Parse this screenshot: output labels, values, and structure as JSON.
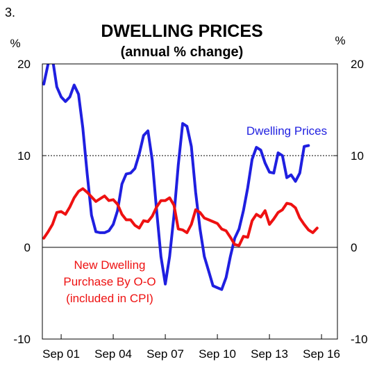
{
  "figure_number": "3.",
  "chart_data": {
    "type": "line",
    "title": "DWELLING PRICES",
    "subtitle": "(annual % change)",
    "ylabel_left": "%",
    "ylabel_right": "%",
    "ylim": [
      -10,
      20
    ],
    "yticks": [
      "20",
      "10",
      "0",
      "-10"
    ],
    "ytick_values": [
      20,
      10,
      0,
      -10
    ],
    "x_start": "2000-08",
    "x_end": "2017-08",
    "xtick_labels": [
      "Sep 01",
      "Sep 04",
      "Sep 07",
      "Sep 10",
      "Sep 13",
      "Sep 16"
    ],
    "xtick_dates": [
      "2001-09",
      "2004-09",
      "2007-09",
      "2010-09",
      "2013-09",
      "2016-09"
    ],
    "grid": "dotted line at 10 only",
    "zero_line": true,
    "series": [
      {
        "name": "Dwelling Prices",
        "color": "#1f1fe0",
        "points": [
          [
            "2000-09",
            17.8
          ],
          [
            "2000-12",
            20.0
          ],
          [
            "2001-03",
            20.6
          ],
          [
            "2001-06",
            17.5
          ],
          [
            "2001-09",
            16.4
          ],
          [
            "2001-12",
            15.9
          ],
          [
            "2002-03",
            16.4
          ],
          [
            "2002-06",
            17.7
          ],
          [
            "2002-09",
            16.7
          ],
          [
            "2002-12",
            13.0
          ],
          [
            "2003-03",
            8.0
          ],
          [
            "2003-06",
            3.5
          ],
          [
            "2003-09",
            1.7
          ],
          [
            "2003-12",
            1.6
          ],
          [
            "2004-03",
            1.6
          ],
          [
            "2004-06",
            1.8
          ],
          [
            "2004-09",
            2.5
          ],
          [
            "2004-12",
            4.0
          ],
          [
            "2005-03",
            6.9
          ],
          [
            "2005-06",
            8.0
          ],
          [
            "2005-09",
            8.1
          ],
          [
            "2005-12",
            8.6
          ],
          [
            "2006-03",
            10.2
          ],
          [
            "2006-06",
            12.2
          ],
          [
            "2006-09",
            12.7
          ],
          [
            "2006-12",
            9.5
          ],
          [
            "2007-03",
            4.0
          ],
          [
            "2007-06",
            -1.0
          ],
          [
            "2007-09",
            -4.0
          ],
          [
            "2007-12",
            -1.0
          ],
          [
            "2008-03",
            3.5
          ],
          [
            "2008-06",
            9.0
          ],
          [
            "2008-09",
            13.5
          ],
          [
            "2008-12",
            13.2
          ],
          [
            "2009-03",
            11.0
          ],
          [
            "2009-06",
            6.0
          ],
          [
            "2009-09",
            2.0
          ],
          [
            "2009-12",
            -1.0
          ],
          [
            "2010-03",
            -2.6
          ],
          [
            "2010-06",
            -4.2
          ],
          [
            "2010-09",
            -4.4
          ],
          [
            "2010-12",
            -4.6
          ],
          [
            "2011-03",
            -3.3
          ],
          [
            "2011-06",
            -1.0
          ],
          [
            "2011-09",
            1.0
          ],
          [
            "2011-12",
            2.0
          ],
          [
            "2012-03",
            4.0
          ],
          [
            "2012-06",
            6.5
          ],
          [
            "2012-09",
            9.6
          ],
          [
            "2012-12",
            10.9
          ],
          [
            "2013-03",
            10.6
          ],
          [
            "2013-06",
            9.2
          ],
          [
            "2013-09",
            8.2
          ],
          [
            "2013-12",
            8.1
          ],
          [
            "2014-03",
            10.3
          ],
          [
            "2014-06",
            10.0
          ],
          [
            "2014-09",
            7.6
          ],
          [
            "2014-12",
            7.9
          ],
          [
            "2015-03",
            7.2
          ],
          [
            "2015-06",
            8.1
          ],
          [
            "2015-09",
            11.0
          ],
          [
            "2015-12",
            11.1
          ]
        ]
      },
      {
        "name": "New Dwelling Purchase By O-O (included in CPI)",
        "color": "#ee1111",
        "points": [
          [
            "2000-09",
            1.0
          ],
          [
            "2000-12",
            1.7
          ],
          [
            "2001-03",
            2.5
          ],
          [
            "2001-06",
            3.8
          ],
          [
            "2001-09",
            3.9
          ],
          [
            "2001-12",
            3.6
          ],
          [
            "2002-03",
            4.4
          ],
          [
            "2002-06",
            5.4
          ],
          [
            "2002-09",
            6.1
          ],
          [
            "2002-12",
            6.4
          ],
          [
            "2003-03",
            6.0
          ],
          [
            "2003-06",
            5.5
          ],
          [
            "2003-09",
            5.0
          ],
          [
            "2003-12",
            5.3
          ],
          [
            "2004-03",
            5.6
          ],
          [
            "2004-06",
            5.1
          ],
          [
            "2004-09",
            5.2
          ],
          [
            "2004-12",
            4.7
          ],
          [
            "2005-03",
            3.6
          ],
          [
            "2005-06",
            3.0
          ],
          [
            "2005-09",
            3.0
          ],
          [
            "2005-12",
            2.4
          ],
          [
            "2006-03",
            2.1
          ],
          [
            "2006-06",
            2.9
          ],
          [
            "2006-09",
            2.8
          ],
          [
            "2006-12",
            3.4
          ],
          [
            "2007-03",
            4.4
          ],
          [
            "2007-06",
            5.1
          ],
          [
            "2007-09",
            5.1
          ],
          [
            "2007-12",
            5.4
          ],
          [
            "2008-03",
            4.6
          ],
          [
            "2008-06",
            2.0
          ],
          [
            "2008-09",
            1.9
          ],
          [
            "2008-12",
            1.6
          ],
          [
            "2009-03",
            2.5
          ],
          [
            "2009-06",
            4.1
          ],
          [
            "2009-09",
            3.8
          ],
          [
            "2009-12",
            3.2
          ],
          [
            "2010-03",
            3.0
          ],
          [
            "2010-06",
            2.8
          ],
          [
            "2010-09",
            2.6
          ],
          [
            "2010-12",
            2.0
          ],
          [
            "2011-03",
            1.8
          ],
          [
            "2011-06",
            1.1
          ],
          [
            "2011-09",
            0.3
          ],
          [
            "2011-12",
            0.2
          ],
          [
            "2012-03",
            1.2
          ],
          [
            "2012-06",
            1.1
          ],
          [
            "2012-09",
            2.9
          ],
          [
            "2012-12",
            3.6
          ],
          [
            "2013-03",
            3.3
          ],
          [
            "2013-06",
            4.0
          ],
          [
            "2013-09",
            2.5
          ],
          [
            "2013-12",
            3.1
          ],
          [
            "2014-03",
            3.8
          ],
          [
            "2014-06",
            4.1
          ],
          [
            "2014-09",
            4.8
          ],
          [
            "2014-12",
            4.7
          ],
          [
            "2015-03",
            4.3
          ],
          [
            "2015-06",
            3.2
          ],
          [
            "2015-09",
            2.5
          ],
          [
            "2015-12",
            1.9
          ],
          [
            "2016-03",
            1.6
          ],
          [
            "2016-06",
            2.1
          ]
        ]
      }
    ],
    "annotations": [
      {
        "series": "Dwelling Prices",
        "lines": [
          "Dwelling Prices"
        ]
      },
      {
        "series": "New Dwelling Purchase By O-O (included in CPI)",
        "lines": [
          "New Dwelling",
          "Purchase By O-O",
          "(included in CPI)"
        ]
      }
    ]
  }
}
